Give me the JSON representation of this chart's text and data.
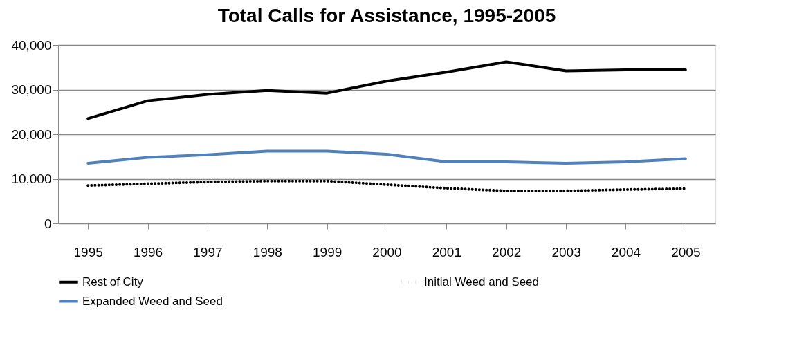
{
  "chart_data": {
    "type": "line",
    "title": "Total Calls for Assistance, 1995-2005",
    "categories": [
      "1995",
      "1996",
      "1997",
      "1998",
      "1999",
      "2000",
      "2001",
      "2002",
      "2003",
      "2004",
      "2005"
    ],
    "series": [
      {
        "name": "Rest of City",
        "color": "#000000",
        "line_style": "solid",
        "values": [
          23500,
          27500,
          28900,
          29800,
          29200,
          31900,
          33900,
          36200,
          34200,
          34400,
          34400
        ]
      },
      {
        "name": "Initial Weed and Seed",
        "color": "#000000",
        "line_style": "dotted",
        "values": [
          8500,
          8900,
          9300,
          9500,
          9500,
          8700,
          7900,
          7300,
          7300,
          7600,
          7800
        ]
      },
      {
        "name": "Expanded Weed and Seed",
        "color": "#4f81bd",
        "line_style": "solid",
        "values": [
          13500,
          14800,
          15400,
          16200,
          16200,
          15500,
          13800,
          13800,
          13500,
          13800,
          14500
        ]
      }
    ],
    "ylim": [
      0,
      40000
    ],
    "yticks": [
      0,
      {
        "value": 10000,
        "label": "10,000"
      },
      {
        "value": 20000,
        "label": "20,000"
      },
      {
        "value": 30000,
        "label": "30,000"
      },
      {
        "value": 40000,
        "label": "40,000"
      }
    ],
    "grid": "y",
    "legend": "bottom",
    "marker": "none"
  }
}
